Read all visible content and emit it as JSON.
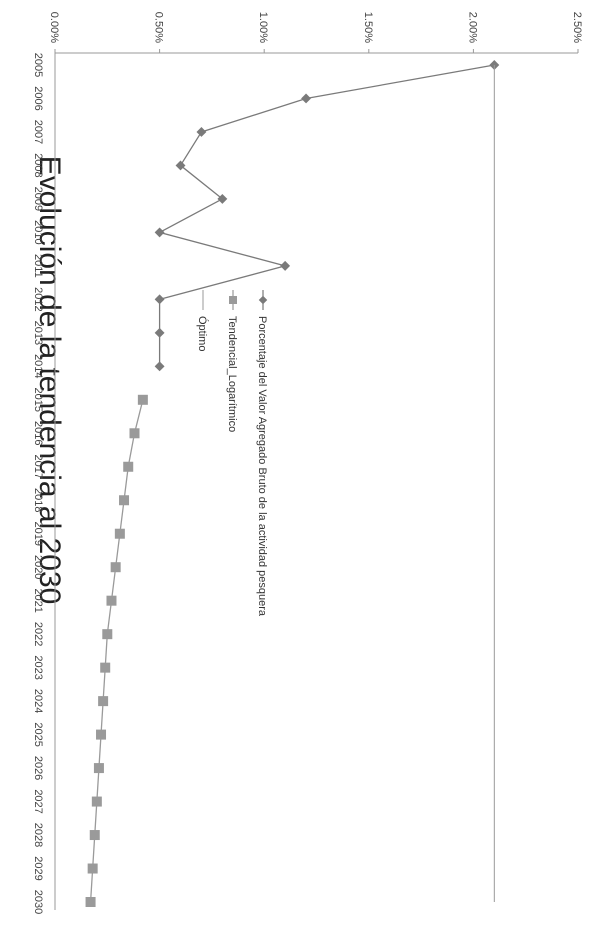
{
  "chart_data": {
    "type": "line",
    "orientation": "rotated-90-clockwise",
    "title": "Evolución de la tendencia al 2030",
    "xlabel": "",
    "ylabel": "",
    "categories": [
      "2005",
      "2006",
      "2007",
      "2008",
      "2009",
      "2010",
      "2011",
      "2012",
      "2013",
      "2014",
      "2015",
      "2016",
      "2017",
      "2018",
      "2019",
      "2020",
      "2021",
      "2022",
      "2023",
      "2024",
      "2025",
      "2026",
      "2027",
      "2028",
      "2029",
      "2030"
    ],
    "y_ticks": [
      "0.00%",
      "0.50%",
      "1.00%",
      "1.50%",
      "2.00%",
      "2.50%"
    ],
    "ylim": [
      0,
      2.5
    ],
    "series": [
      {
        "name": "Porcentaje del Valor Agregado Bruto de la actividad pesquera",
        "marker": "diamond",
        "color": "#7a7a7a",
        "values": [
          2.1,
          1.2,
          0.7,
          0.6,
          0.8,
          0.5,
          1.1,
          0.5,
          0.5,
          0.5,
          null,
          null,
          null,
          null,
          null,
          null,
          null,
          null,
          null,
          null,
          null,
          null,
          null,
          null,
          null,
          null
        ]
      },
      {
        "name": "Tendencial_Logarítmico",
        "marker": "square",
        "color": "#9a9a9a",
        "values": [
          null,
          null,
          null,
          null,
          null,
          null,
          null,
          null,
          null,
          null,
          0.42,
          0.38,
          0.35,
          0.33,
          0.31,
          0.29,
          0.27,
          0.25,
          0.24,
          0.23,
          0.22,
          0.21,
          0.2,
          0.19,
          0.18,
          0.17
        ]
      },
      {
        "name": "Óptimo",
        "marker": "none",
        "color": "#9a9a9a",
        "values": [
          2.1,
          2.1,
          2.1,
          2.1,
          2.1,
          2.1,
          2.1,
          2.1,
          2.1,
          2.1,
          2.1,
          2.1,
          2.1,
          2.1,
          2.1,
          2.1,
          2.1,
          2.1,
          2.1,
          2.1,
          2.1,
          2.1,
          2.1,
          2.1,
          2.1,
          2.1
        ]
      }
    ],
    "legend_position": "center"
  }
}
